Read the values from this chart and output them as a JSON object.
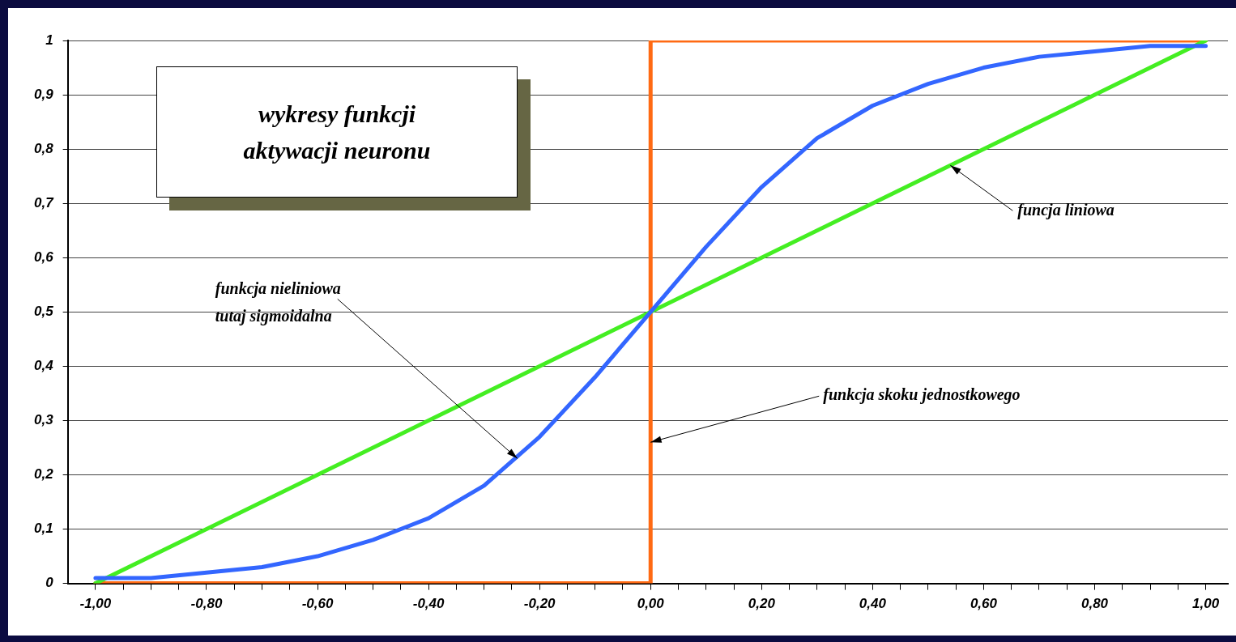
{
  "chart_data": {
    "type": "line",
    "title": "wykresy funkcji aktywacji neuronu",
    "x": [
      -1,
      -0.9,
      -0.8,
      -0.7,
      -0.6,
      -0.5,
      -0.4,
      -0.3,
      -0.2,
      -0.1,
      0,
      0.1,
      0.2,
      0.3,
      0.4,
      0.5,
      0.6,
      0.7,
      0.8,
      0.9,
      1
    ],
    "series": [
      {
        "color": "#3366ff",
        "values": [
          0.01,
          0.01,
          0.02,
          0.03,
          0.05,
          0.08,
          0.12,
          0.18,
          0.27,
          0.38,
          0.5,
          0.62,
          0.73,
          0.82,
          0.88,
          0.92,
          0.95,
          0.97,
          0.98,
          0.99,
          0.99
        ]
      },
      {
        "color": "#44ee22",
        "x": [
          -1,
          1
        ],
        "values": [
          0,
          1
        ]
      },
      {
        "type": "step",
        "color": "#ff6a13",
        "x": [
          -1,
          0,
          1
        ],
        "values": [
          0,
          1,
          1
        ]
      }
    ],
    "xlim": [
      -1.05,
      1.04
    ],
    "xticks": [
      {
        "value": -1,
        "label": "-1,00"
      },
      {
        "value": -0.95,
        "label": null
      },
      {
        "value": -0.9,
        "label": null
      },
      {
        "value": -0.85,
        "label": null
      },
      {
        "value": -0.8,
        "label": "-0,80"
      },
      {
        "value": -0.75,
        "label": null
      },
      {
        "value": -0.7,
        "label": null
      },
      {
        "value": -0.65,
        "label": null
      },
      {
        "value": -0.6,
        "label": "-0,60"
      },
      {
        "value": -0.55,
        "label": null
      },
      {
        "value": -0.5,
        "label": null
      },
      {
        "value": -0.45,
        "label": null
      },
      {
        "value": -0.4,
        "label": "-0,40"
      },
      {
        "value": -0.35,
        "label": null
      },
      {
        "value": -0.3,
        "label": null
      },
      {
        "value": -0.25,
        "label": null
      },
      {
        "value": -0.2,
        "label": "-0,20"
      },
      {
        "value": -0.15,
        "label": null
      },
      {
        "value": -0.1,
        "label": null
      },
      {
        "value": -0.05,
        "label": null
      },
      {
        "value": 0,
        "label": "0,00"
      },
      {
        "value": 0.05,
        "label": null
      },
      {
        "value": 0.1,
        "label": null
      },
      {
        "value": 0.15,
        "label": null
      },
      {
        "value": 0.2,
        "label": "0,20"
      },
      {
        "value": 0.25,
        "label": null
      },
      {
        "value": 0.3,
        "label": null
      },
      {
        "value": 0.35,
        "label": null
      },
      {
        "value": 0.4,
        "label": "0,40"
      },
      {
        "value": 0.45,
        "label": null
      },
      {
        "value": 0.5,
        "label": null
      },
      {
        "value": 0.55,
        "label": null
      },
      {
        "value": 0.6,
        "label": "0,60"
      },
      {
        "value": 0.65,
        "label": null
      },
      {
        "value": 0.7,
        "label": null
      },
      {
        "value": 0.75,
        "label": null
      },
      {
        "value": 0.8,
        "label": "0,80"
      },
      {
        "value": 0.85,
        "label": null
      },
      {
        "value": 0.9,
        "label": null
      },
      {
        "value": 0.95,
        "label": null
      },
      {
        "value": 1,
        "label": "1,00"
      }
    ],
    "ylim": [
      0,
      1
    ],
    "yticks": [
      0,
      {
        "value": 0.1,
        "label": "0,1"
      },
      {
        "value": 0.2,
        "label": "0,2"
      },
      {
        "value": 0.3,
        "label": "0,3"
      },
      {
        "value": 0.4,
        "label": "0,4"
      },
      {
        "value": 0.5,
        "label": "0,5"
      },
      {
        "value": 0.6,
        "label": "0,6"
      },
      {
        "value": 0.7,
        "label": "0,7"
      },
      {
        "value": 0.8,
        "label": "0,8"
      },
      {
        "value": 0.9,
        "label": "0,9"
      },
      1
    ],
    "grid": "y",
    "legend": false,
    "marker": "none",
    "line_style": "solid",
    "annotations": [
      {
        "text": "funkcja nieliniowa\ntutaj sigmoidalna",
        "x": -0.24,
        "y": 0.23
      },
      {
        "text": "funcja liniowa",
        "x": 0.54,
        "y": 0.77
      },
      {
        "text": "funkcja skoku jednostkowego",
        "x": 0,
        "y": 0.26
      }
    ]
  }
}
